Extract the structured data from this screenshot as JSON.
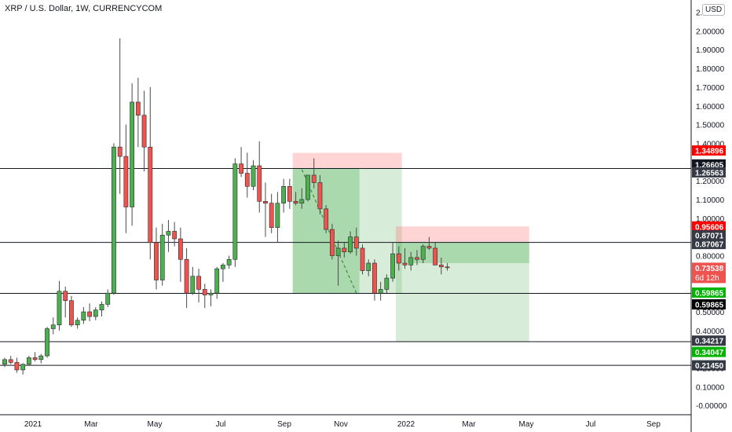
{
  "header": {
    "symbol_title": "XRP / U.S. Dollar, 1W, CURRENCYCOM",
    "currency_button": "USD"
  },
  "chart_data": {
    "type": "candlestick",
    "title": "XRP / U.S. Dollar, 1W, CURRENCYCOM",
    "x_tick_labels": [
      "2021",
      "Mar",
      "May",
      "Jul",
      "Sep",
      "Nov",
      "2022",
      "Mar",
      "May",
      "Jul",
      "Sep"
    ],
    "y_tick_labels": [
      "-0.00000",
      "0.10000",
      "0.20000",
      "0.30000",
      "0.40000",
      "0.50000",
      "0.60000",
      "0.70000",
      "0.80000",
      "0.90000",
      "1.00000",
      "1.10000",
      "1.20000",
      "1.30000",
      "1.40000",
      "1.50000",
      "1.60000",
      "1.70000",
      "1.80000",
      "1.90000",
      "2.00000",
      "2.10000"
    ],
    "ylim": [
      -0.02,
      2.14
    ],
    "colors": {
      "up": "#4caf50",
      "down": "#ef5350",
      "text": "#131722",
      "grid_line": "#131722"
    },
    "candles": [
      {
        "o": 0.22,
        "h": 0.255,
        "l": 0.205,
        "c": 0.245
      },
      {
        "o": 0.245,
        "h": 0.265,
        "l": 0.22,
        "c": 0.23
      },
      {
        "o": 0.23,
        "h": 0.255,
        "l": 0.175,
        "c": 0.19
      },
      {
        "o": 0.19,
        "h": 0.225,
        "l": 0.165,
        "c": 0.22
      },
      {
        "o": 0.22,
        "h": 0.265,
        "l": 0.215,
        "c": 0.255
      },
      {
        "o": 0.255,
        "h": 0.285,
        "l": 0.235,
        "c": 0.245
      },
      {
        "o": 0.245,
        "h": 0.275,
        "l": 0.225,
        "c": 0.265
      },
      {
        "o": 0.265,
        "h": 0.42,
        "l": 0.255,
        "c": 0.41
      },
      {
        "o": 0.41,
        "h": 0.47,
        "l": 0.38,
        "c": 0.43
      },
      {
        "o": 0.43,
        "h": 0.665,
        "l": 0.4,
        "c": 0.61
      },
      {
        "o": 0.61,
        "h": 0.635,
        "l": 0.47,
        "c": 0.56
      },
      {
        "o": 0.56,
        "h": 0.585,
        "l": 0.42,
        "c": 0.43
      },
      {
        "o": 0.43,
        "h": 0.47,
        "l": 0.41,
        "c": 0.455
      },
      {
        "o": 0.455,
        "h": 0.525,
        "l": 0.435,
        "c": 0.5
      },
      {
        "o": 0.5,
        "h": 0.545,
        "l": 0.45,
        "c": 0.475
      },
      {
        "o": 0.475,
        "h": 0.525,
        "l": 0.455,
        "c": 0.51
      },
      {
        "o": 0.51,
        "h": 0.555,
        "l": 0.475,
        "c": 0.54
      },
      {
        "o": 0.54,
        "h": 0.62,
        "l": 0.525,
        "c": 0.6
      },
      {
        "o": 0.6,
        "h": 1.4,
        "l": 0.59,
        "c": 1.38
      },
      {
        "o": 1.38,
        "h": 1.96,
        "l": 1.13,
        "c": 1.33
      },
      {
        "o": 1.33,
        "h": 1.5,
        "l": 0.92,
        "c": 1.06
      },
      {
        "o": 1.06,
        "h": 1.72,
        "l": 0.96,
        "c": 1.62
      },
      {
        "o": 1.62,
        "h": 1.75,
        "l": 1.38,
        "c": 1.55
      },
      {
        "o": 1.55,
        "h": 1.68,
        "l": 1.25,
        "c": 1.38
      },
      {
        "o": 1.38,
        "h": 1.7,
        "l": 0.78,
        "c": 0.87
      },
      {
        "o": 0.87,
        "h": 0.95,
        "l": 0.62,
        "c": 0.67
      },
      {
        "o": 0.67,
        "h": 0.97,
        "l": 0.64,
        "c": 0.91
      },
      {
        "o": 0.91,
        "h": 0.99,
        "l": 0.82,
        "c": 0.93
      },
      {
        "o": 0.93,
        "h": 0.98,
        "l": 0.85,
        "c": 0.89
      },
      {
        "o": 0.89,
        "h": 0.95,
        "l": 0.66,
        "c": 0.78
      },
      {
        "o": 0.78,
        "h": 0.84,
        "l": 0.52,
        "c": 0.6
      },
      {
        "o": 0.6,
        "h": 0.74,
        "l": 0.59,
        "c": 0.69
      },
      {
        "o": 0.69,
        "h": 0.73,
        "l": 0.55,
        "c": 0.62
      },
      {
        "o": 0.62,
        "h": 0.65,
        "l": 0.52,
        "c": 0.59
      },
      {
        "o": 0.59,
        "h": 0.62,
        "l": 0.53,
        "c": 0.6
      },
      {
        "o": 0.6,
        "h": 0.74,
        "l": 0.57,
        "c": 0.73
      },
      {
        "o": 0.73,
        "h": 0.76,
        "l": 0.66,
        "c": 0.75
      },
      {
        "o": 0.75,
        "h": 0.8,
        "l": 0.73,
        "c": 0.78
      },
      {
        "o": 0.78,
        "h": 1.32,
        "l": 0.74,
        "c": 1.29
      },
      {
        "o": 1.29,
        "h": 1.38,
        "l": 1.22,
        "c": 1.24
      },
      {
        "o": 1.24,
        "h": 1.35,
        "l": 1.11,
        "c": 1.17
      },
      {
        "o": 1.17,
        "h": 1.31,
        "l": 1.15,
        "c": 1.28
      },
      {
        "o": 1.28,
        "h": 1.41,
        "l": 1.03,
        "c": 1.09
      },
      {
        "o": 1.09,
        "h": 1.19,
        "l": 0.9,
        "c": 1.08
      },
      {
        "o": 1.08,
        "h": 1.13,
        "l": 0.92,
        "c": 0.95
      },
      {
        "o": 0.95,
        "h": 1.14,
        "l": 0.87,
        "c": 1.08
      },
      {
        "o": 1.08,
        "h": 1.21,
        "l": 1.03,
        "c": 1.17
      },
      {
        "o": 1.17,
        "h": 1.21,
        "l": 1.05,
        "c": 1.09
      },
      {
        "o": 1.09,
        "h": 1.14,
        "l": 1.07,
        "c": 1.08
      },
      {
        "o": 1.08,
        "h": 1.16,
        "l": 1.05,
        "c": 1.1
      },
      {
        "o": 1.1,
        "h": 1.23,
        "l": 1.09,
        "c": 1.23
      },
      {
        "o": 1.23,
        "h": 1.32,
        "l": 1.16,
        "c": 1.19
      },
      {
        "o": 1.19,
        "h": 1.23,
        "l": 1.02,
        "c": 1.05
      },
      {
        "o": 1.05,
        "h": 1.07,
        "l": 0.92,
        "c": 0.94
      },
      {
        "o": 0.94,
        "h": 0.97,
        "l": 0.78,
        "c": 0.8
      },
      {
        "o": 0.8,
        "h": 0.88,
        "l": 0.64,
        "c": 0.84
      },
      {
        "o": 0.84,
        "h": 0.87,
        "l": 0.79,
        "c": 0.82
      },
      {
        "o": 0.82,
        "h": 0.93,
        "l": 0.81,
        "c": 0.9
      },
      {
        "o": 0.9,
        "h": 0.95,
        "l": 0.8,
        "c": 0.84
      },
      {
        "o": 0.84,
        "h": 0.86,
        "l": 0.7,
        "c": 0.72
      },
      {
        "o": 0.72,
        "h": 0.78,
        "l": 0.69,
        "c": 0.76
      },
      {
        "o": 0.76,
        "h": 0.78,
        "l": 0.56,
        "c": 0.6
      },
      {
        "o": 0.6,
        "h": 0.66,
        "l": 0.56,
        "c": 0.62
      },
      {
        "o": 0.62,
        "h": 0.7,
        "l": 0.6,
        "c": 0.68
      },
      {
        "o": 0.68,
        "h": 0.87,
        "l": 0.66,
        "c": 0.81
      },
      {
        "o": 0.81,
        "h": 0.85,
        "l": 0.72,
        "c": 0.76
      },
      {
        "o": 0.76,
        "h": 0.84,
        "l": 0.73,
        "c": 0.75
      },
      {
        "o": 0.75,
        "h": 0.82,
        "l": 0.72,
        "c": 0.79
      },
      {
        "o": 0.79,
        "h": 0.83,
        "l": 0.75,
        "c": 0.78
      },
      {
        "o": 0.78,
        "h": 0.86,
        "l": 0.76,
        "c": 0.85
      },
      {
        "o": 0.85,
        "h": 0.9,
        "l": 0.83,
        "c": 0.84
      },
      {
        "o": 0.84,
        "h": 0.87,
        "l": 0.77,
        "c": 0.75
      },
      {
        "o": 0.75,
        "h": 0.79,
        "l": 0.7,
        "c": 0.74
      },
      {
        "o": 0.74,
        "h": 0.76,
        "l": 0.72,
        "c": 0.73538
      }
    ],
    "horizontal_lines": [
      1.26563,
      0.87067,
      0.59865,
      0.34047,
      0.2145
    ],
    "zones": [
      {
        "kind": "stop",
        "bottom": 1.26605,
        "top": 1.34896,
        "start_index": 48,
        "end_index": 65,
        "color": "rgba(255,82,82,0.25)"
      },
      {
        "kind": "target",
        "bottom": 0.59865,
        "top": 1.26605,
        "start_index": 48,
        "end_index": 65,
        "color": "rgba(76,175,80,0.28)",
        "filled_to_index": 58
      },
      {
        "kind": "stop",
        "bottom": 0.87071,
        "top": 0.95606,
        "start_index": 65,
        "end_index": 86,
        "color": "rgba(255,82,82,0.25)"
      },
      {
        "kind": "target",
        "bottom": 0.34217,
        "top": 0.87071,
        "start_index": 65,
        "end_index": 86,
        "color": "rgba(76,175,80,0.28)",
        "filled_to_index": 86,
        "filled_bottom": 0.76
      }
    ],
    "dashed_path": [
      {
        "i": 49,
        "v": 1.26
      },
      {
        "i": 58,
        "v": 0.6
      }
    ],
    "price_labels": [
      {
        "text": "1.34896",
        "value": 1.34896,
        "bg": "#ff0000",
        "fg": "#ffffff"
      },
      {
        "text": "1.26605",
        "value": 1.26605,
        "bg": "#131722",
        "fg": "#ffffff"
      },
      {
        "text": "1.26563",
        "value": 1.26563,
        "bg": "#363a45",
        "fg": "#ffffff"
      },
      {
        "text": "0.95606",
        "value": 0.95606,
        "bg": "#ff0000",
        "fg": "#ffffff"
      },
      {
        "text": "0.87071",
        "value": 0.87071,
        "bg": "#363a45",
        "fg": "#ffffff"
      },
      {
        "text": "0.87067",
        "value": 0.87067,
        "bg": "#363a45",
        "fg": "#ffffff"
      },
      {
        "text": "0.73538",
        "value": 0.73538,
        "bg": "#ef5350",
        "fg": "#ffffff",
        "subtext": "6d 12h"
      },
      {
        "text": "0.59865",
        "value": 0.59865,
        "bg": "#00b400",
        "fg": "#ffffff"
      },
      {
        "text": "0.59865",
        "value": 0.59865,
        "bg": "#000000",
        "fg": "#ffffff",
        "stack": 1
      },
      {
        "text": "0.34217",
        "value": 0.34217,
        "bg": "#363a45",
        "fg": "#ffffff"
      },
      {
        "text": "0.34047",
        "value": 0.34047,
        "bg": "#00b400",
        "fg": "#ffffff"
      },
      {
        "text": "0.21450",
        "value": 0.2145,
        "bg": "#363a45",
        "fg": "#ffffff"
      }
    ]
  }
}
